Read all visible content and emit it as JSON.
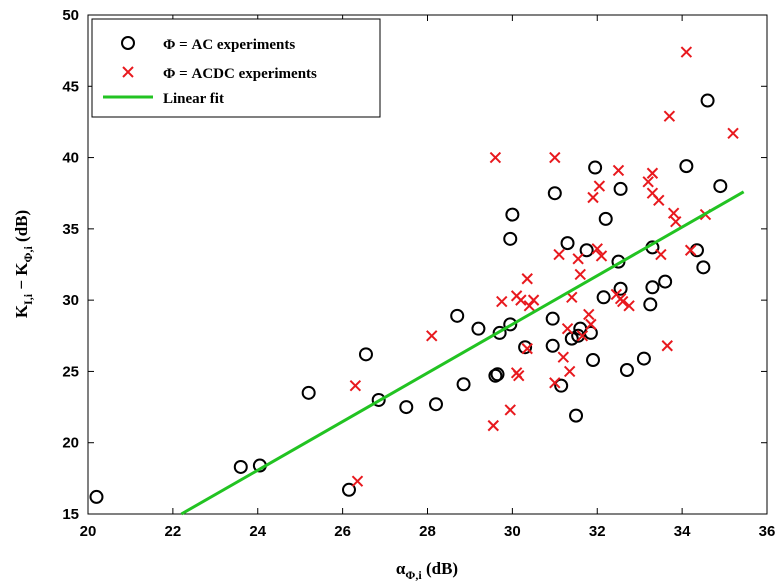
{
  "chart_data": {
    "type": "scatter",
    "xlim": [
      20,
      36
    ],
    "ylim": [
      15,
      50
    ],
    "x_ticks": [
      "20",
      "22",
      "24",
      "26",
      "28",
      "30",
      "32",
      "34",
      "36"
    ],
    "y_ticks": [
      "15",
      "20",
      "25",
      "30",
      "35",
      "40",
      "45",
      "50"
    ],
    "xlabel": {
      "main": "α",
      "sub": "Φ,i",
      "unit": " (dB)"
    },
    "ylabel": {
      "a": "K",
      "a_sub": "I,i",
      "mid": " − K",
      "b_sub": "Φ,i",
      "unit": " (dB)"
    },
    "grid": false,
    "legend_position": "top-left",
    "series": [
      {
        "name": "Φ = AC experiments",
        "marker": "circle",
        "color": "#000000",
        "x": [
          20.2,
          23.6,
          24.05,
          25.2,
          26.15,
          26.55,
          26.85,
          27.5,
          28.2,
          28.7,
          28.85,
          29.2,
          29.6,
          29.65,
          29.7,
          29.95,
          29.95,
          30.0,
          30.3,
          30.95,
          30.95,
          31.0,
          31.15,
          31.3,
          31.4,
          31.5,
          31.55,
          31.6,
          31.75,
          31.85,
          31.9,
          31.95,
          32.15,
          32.2,
          32.5,
          32.55,
          32.55,
          32.7,
          33.1,
          33.25,
          33.3,
          33.3,
          33.6,
          34.1,
          34.35,
          34.5,
          34.6,
          34.9
        ],
        "y": [
          16.2,
          18.3,
          18.4,
          23.5,
          16.7,
          26.2,
          23.0,
          22.5,
          22.7,
          28.9,
          24.1,
          28.0,
          24.7,
          24.8,
          27.7,
          28.3,
          34.3,
          36.0,
          26.7,
          28.7,
          26.8,
          37.5,
          24.0,
          34.0,
          27.3,
          21.9,
          27.5,
          28.0,
          33.5,
          27.7,
          25.8,
          39.3,
          30.2,
          35.7,
          32.7,
          30.8,
          37.8,
          25.1,
          25.9,
          29.7,
          30.9,
          33.7,
          31.3,
          39.4,
          33.5,
          32.3,
          44.0,
          38.0
        ]
      },
      {
        "name": "Φ = ACDC experiments",
        "marker": "x",
        "color": "#e8191e",
        "x": [
          26.3,
          26.35,
          28.1,
          29.55,
          29.6,
          29.75,
          29.95,
          30.1,
          30.1,
          30.15,
          30.2,
          30.35,
          30.35,
          30.4,
          30.5,
          31.0,
          31.0,
          31.1,
          31.2,
          31.3,
          31.35,
          31.4,
          31.55,
          31.6,
          31.65,
          31.8,
          31.85,
          31.9,
          32.0,
          32.05,
          32.1,
          32.45,
          32.5,
          32.55,
          32.6,
          32.75,
          33.2,
          33.3,
          33.3,
          33.45,
          33.5,
          33.65,
          33.7,
          33.8,
          33.85,
          34.1,
          34.2,
          34.55,
          35.2
        ],
        "y": [
          24.0,
          17.3,
          27.5,
          21.2,
          40.0,
          29.9,
          22.3,
          24.9,
          30.3,
          24.7,
          30.0,
          26.6,
          31.5,
          29.6,
          30.0,
          40.0,
          24.2,
          33.2,
          26.0,
          28.0,
          25.0,
          30.2,
          32.9,
          31.8,
          27.5,
          29.0,
          28.3,
          37.2,
          33.6,
          38.0,
          33.1,
          30.4,
          39.1,
          30.1,
          29.9,
          29.6,
          38.3,
          38.9,
          37.5,
          37.0,
          33.2,
          26.8,
          42.9,
          36.1,
          35.5,
          47.4,
          33.5,
          36.0,
          41.7
        ]
      },
      {
        "name": "Linear fit",
        "marker": "line",
        "color": "#22c322",
        "x": [
          22.2,
          35.45
        ],
        "y": [
          15.0,
          37.6
        ]
      }
    ]
  }
}
